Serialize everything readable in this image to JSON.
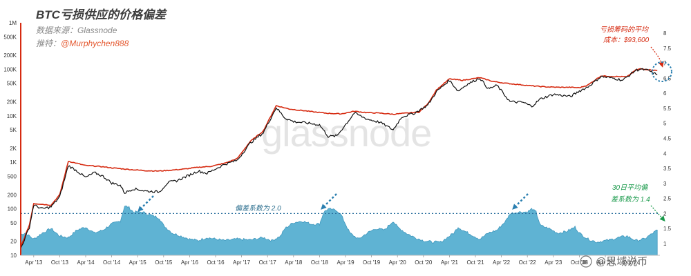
{
  "header": {
    "title": "BTC亏损供应的价格偏差",
    "source": "数据来源：Glassnode",
    "author_prefix": "推特：",
    "author_handle": "@Murphychen888"
  },
  "watermark": "glassnode",
  "weibo_mark": "@思域说币",
  "annotations": {
    "cost_basis_line1": "亏损筹码的平均",
    "cost_basis_line2": "成本：$93,600",
    "deviation_2": "偏差系数为 2.0",
    "avg30_line1": "30日平均偏",
    "avg30_line2": "差系数为 1.4"
  },
  "colors": {
    "price_line": "#111111",
    "cost_basis_line": "#d62a10",
    "deviation_fill": "#5fb3d3",
    "deviation_fill_stroke": "#3f97bd",
    "reference_line": "#2a6f9e",
    "left_axis": "#d62a10",
    "arrow_blue": "#2a7fb0",
    "arrow_red": "#d62a10",
    "arrow_green": "#1a9a4b"
  },
  "chart_data": {
    "type": "line",
    "left_axis": {
      "scale": "log",
      "ticks": [
        {
          "label": "1M",
          "value": 1000000
        },
        {
          "label": "500K",
          "value": 500000
        },
        {
          "label": "200K",
          "value": 200000
        },
        {
          "label": "100K",
          "value": 100000
        },
        {
          "label": "50K",
          "value": 50000
        },
        {
          "label": "20K",
          "value": 20000
        },
        {
          "label": "10K",
          "value": 10000
        },
        {
          "label": "5K",
          "value": 5000
        },
        {
          "label": "2K",
          "value": 2000
        },
        {
          "label": "1K",
          "value": 1000
        },
        {
          "label": "500",
          "value": 500
        },
        {
          "label": "200",
          "value": 200
        },
        {
          "label": "100",
          "value": 100
        },
        {
          "label": "50",
          "value": 50
        },
        {
          "label": "20",
          "value": 20
        },
        {
          "label": "10",
          "value": 10
        }
      ]
    },
    "right_axis": {
      "scale": "linear",
      "ticks": [
        "8",
        "7.5",
        "7",
        "6.5",
        "6",
        "5.5",
        "5",
        "4.5",
        "4",
        "3.5",
        "3",
        "2.5",
        "2",
        "1.5",
        "1"
      ]
    },
    "x_ticks": [
      "Apr '13",
      "Oct '13",
      "Apr '14",
      "Oct '14",
      "Apr '15",
      "Oct '15",
      "Apr '16",
      "Oct '16",
      "Apr '17",
      "Oct '17",
      "Apr '18",
      "Oct '18",
      "Apr '19",
      "Oct '19",
      "Apr '20",
      "Oct '20",
      "Apr '21",
      "Oct '21",
      "Apr '22",
      "Oct '22",
      "Apr '23",
      "Oct '23",
      "Apr '24",
      "Oct '24"
    ],
    "reference_level": 2.0,
    "series": [
      {
        "name": "",
        "axis": "left",
        "role": "price",
        "points": [
          [
            "2013-01",
            14
          ],
          [
            "2013-03",
            40
          ],
          [
            "2013-04",
            120
          ],
          [
            "2013-06",
            100
          ],
          [
            "2013-08",
            110
          ],
          [
            "2013-10",
            180
          ],
          [
            "2013-12",
            850
          ],
          [
            "2014-02",
            650
          ],
          [
            "2014-04",
            470
          ],
          [
            "2014-06",
            600
          ],
          [
            "2014-08",
            500
          ],
          [
            "2014-10",
            360
          ],
          [
            "2014-12",
            320
          ],
          [
            "2015-01",
            220
          ],
          [
            "2015-03",
            270
          ],
          [
            "2015-06",
            240
          ],
          [
            "2015-09",
            230
          ],
          [
            "2015-11",
            370
          ],
          [
            "2016-01",
            400
          ],
          [
            "2016-06",
            650
          ],
          [
            "2016-08",
            580
          ],
          [
            "2016-12",
            900
          ],
          [
            "2017-03",
            1100
          ],
          [
            "2017-06",
            2600
          ],
          [
            "2017-09",
            4300
          ],
          [
            "2017-12",
            15000
          ],
          [
            "2018-02",
            9000
          ],
          [
            "2018-04",
            7500
          ],
          [
            "2018-07",
            7000
          ],
          [
            "2018-10",
            6400
          ],
          [
            "2018-12",
            3600
          ],
          [
            "2019-02",
            3700
          ],
          [
            "2019-05",
            8500
          ],
          [
            "2019-06",
            11500
          ],
          [
            "2019-09",
            8500
          ],
          [
            "2019-12",
            7200
          ],
          [
            "2020-03",
            5000
          ],
          [
            "2020-05",
            9500
          ],
          [
            "2020-08",
            11500
          ],
          [
            "2020-11",
            17000
          ],
          [
            "2021-01",
            33000
          ],
          [
            "2021-04",
            58000
          ],
          [
            "2021-06",
            34000
          ],
          [
            "2021-08",
            47000
          ],
          [
            "2021-11",
            65000
          ],
          [
            "2022-01",
            38000
          ],
          [
            "2022-03",
            45000
          ],
          [
            "2022-06",
            20000
          ],
          [
            "2022-09",
            19500
          ],
          [
            "2022-11",
            16000
          ],
          [
            "2023-01",
            23000
          ],
          [
            "2023-04",
            29000
          ],
          [
            "2023-08",
            26000
          ],
          [
            "2023-10",
            34000
          ],
          [
            "2023-12",
            42000
          ],
          [
            "2024-03",
            70000
          ],
          [
            "2024-06",
            64000
          ],
          [
            "2024-08",
            58000
          ],
          [
            "2024-11",
            95000
          ],
          [
            "2024-12",
            100000
          ],
          [
            "2025-02",
            95000
          ],
          [
            "2025-03",
            82000
          ],
          [
            "2025-04",
            78000
          ]
        ]
      },
      {
        "name": "",
        "axis": "left",
        "role": "cost_basis",
        "points": [
          [
            "2013-01",
            15
          ],
          [
            "2013-03",
            45
          ],
          [
            "2013-04",
            130
          ],
          [
            "2013-06",
            125
          ],
          [
            "2013-08",
            120
          ],
          [
            "2013-10",
            200
          ],
          [
            "2013-12",
            1050
          ],
          [
            "2014-02",
            950
          ],
          [
            "2014-04",
            850
          ],
          [
            "2014-06",
            830
          ],
          [
            "2014-08",
            800
          ],
          [
            "2014-10",
            760
          ],
          [
            "2014-12",
            730
          ],
          [
            "2015-03",
            690
          ],
          [
            "2015-06",
            660
          ],
          [
            "2015-09",
            650
          ],
          [
            "2015-12",
            680
          ],
          [
            "2016-03",
            720
          ],
          [
            "2016-06",
            780
          ],
          [
            "2016-09",
            820
          ],
          [
            "2016-12",
            950
          ],
          [
            "2017-03",
            1200
          ],
          [
            "2017-06",
            2800
          ],
          [
            "2017-09",
            4700
          ],
          [
            "2017-12",
            16500
          ],
          [
            "2018-03",
            14000
          ],
          [
            "2018-06",
            13000
          ],
          [
            "2018-09",
            12000
          ],
          [
            "2018-12",
            11300
          ],
          [
            "2019-03",
            11000
          ],
          [
            "2019-06",
            12500
          ],
          [
            "2019-09",
            11700
          ],
          [
            "2019-12",
            11400
          ],
          [
            "2020-03",
            10800
          ],
          [
            "2020-06",
            11400
          ],
          [
            "2020-09",
            12000
          ],
          [
            "2020-11",
            18000
          ],
          [
            "2021-01",
            36000
          ],
          [
            "2021-04",
            62000
          ],
          [
            "2021-07",
            58000
          ],
          [
            "2021-11",
            66000
          ],
          [
            "2022-02",
            55000
          ],
          [
            "2022-05",
            50000
          ],
          [
            "2022-08",
            47000
          ],
          [
            "2022-11",
            44000
          ],
          [
            "2023-02",
            42000
          ],
          [
            "2023-05",
            41000
          ],
          [
            "2023-08",
            41000
          ],
          [
            "2023-10",
            40000
          ],
          [
            "2023-12",
            46000
          ],
          [
            "2024-03",
            72000
          ],
          [
            "2024-06",
            70000
          ],
          [
            "2024-09",
            69000
          ],
          [
            "2024-11",
            96000
          ],
          [
            "2024-12",
            102000
          ],
          [
            "2025-02",
            98000
          ],
          [
            "2025-04",
            93600
          ]
        ]
      },
      {
        "name": "",
        "axis": "right",
        "role": "deviation",
        "points": [
          [
            "2013-01",
            1.3
          ],
          [
            "2013-02",
            1.35
          ],
          [
            "2013-04",
            1.15
          ],
          [
            "2013-06",
            1.35
          ],
          [
            "2013-08",
            1.5
          ],
          [
            "2013-10",
            1.25
          ],
          [
            "2013-12",
            1.2
          ],
          [
            "2014-02",
            1.45
          ],
          [
            "2014-04",
            1.55
          ],
          [
            "2014-06",
            1.35
          ],
          [
            "2014-08",
            1.45
          ],
          [
            "2014-10",
            1.65
          ],
          [
            "2014-12",
            1.75
          ],
          [
            "2015-01",
            2.25
          ],
          [
            "2015-02",
            2.2
          ],
          [
            "2015-03",
            2.05
          ],
          [
            "2015-05",
            2.05
          ],
          [
            "2015-07",
            1.95
          ],
          [
            "2015-09",
            1.85
          ],
          [
            "2015-10",
            1.6
          ],
          [
            "2015-12",
            1.35
          ],
          [
            "2016-02",
            1.25
          ],
          [
            "2016-04",
            1.15
          ],
          [
            "2016-06",
            1.1
          ],
          [
            "2016-08",
            1.2
          ],
          [
            "2016-10",
            1.15
          ],
          [
            "2016-12",
            1.1
          ],
          [
            "2017-03",
            1.15
          ],
          [
            "2017-06",
            1.12
          ],
          [
            "2017-09",
            1.2
          ],
          [
            "2017-11",
            1.1
          ],
          [
            "2018-01",
            1.25
          ],
          [
            "2018-02",
            1.5
          ],
          [
            "2018-04",
            1.7
          ],
          [
            "2018-06",
            1.75
          ],
          [
            "2018-08",
            1.65
          ],
          [
            "2018-10",
            1.65
          ],
          [
            "2018-11",
            2.05
          ],
          [
            "2018-12",
            2.15
          ],
          [
            "2019-02",
            2.1
          ],
          [
            "2019-03",
            1.95
          ],
          [
            "2019-05",
            1.35
          ],
          [
            "2019-07",
            1.15
          ],
          [
            "2019-09",
            1.35
          ],
          [
            "2019-11",
            1.5
          ],
          [
            "2020-01",
            1.45
          ],
          [
            "2020-03",
            1.75
          ],
          [
            "2020-04",
            1.55
          ],
          [
            "2020-06",
            1.35
          ],
          [
            "2020-08",
            1.2
          ],
          [
            "2020-10",
            1.1
          ],
          [
            "2020-12",
            1.05
          ],
          [
            "2021-02",
            1.05
          ],
          [
            "2021-05",
            1.35
          ],
          [
            "2021-06",
            1.55
          ],
          [
            "2021-07",
            1.45
          ],
          [
            "2021-09",
            1.3
          ],
          [
            "2021-11",
            1.15
          ],
          [
            "2022-01",
            1.35
          ],
          [
            "2022-03",
            1.45
          ],
          [
            "2022-05",
            1.75
          ],
          [
            "2022-06",
            2.0
          ],
          [
            "2022-08",
            2.05
          ],
          [
            "2022-10",
            2.05
          ],
          [
            "2022-11",
            2.15
          ],
          [
            "2022-12",
            2.05
          ],
          [
            "2023-01",
            1.6
          ],
          [
            "2023-03",
            1.5
          ],
          [
            "2023-05",
            1.35
          ],
          [
            "2023-07",
            1.4
          ],
          [
            "2023-09",
            1.55
          ],
          [
            "2023-10",
            1.35
          ],
          [
            "2023-12",
            1.15
          ],
          [
            "2024-02",
            1.05
          ],
          [
            "2024-05",
            1.12
          ],
          [
            "2024-07",
            1.2
          ],
          [
            "2024-09",
            1.25
          ],
          [
            "2024-11",
            1.1
          ],
          [
            "2025-01",
            1.15
          ],
          [
            "2025-03",
            1.35
          ],
          [
            "2025-04",
            1.45
          ]
        ]
      }
    ]
  }
}
